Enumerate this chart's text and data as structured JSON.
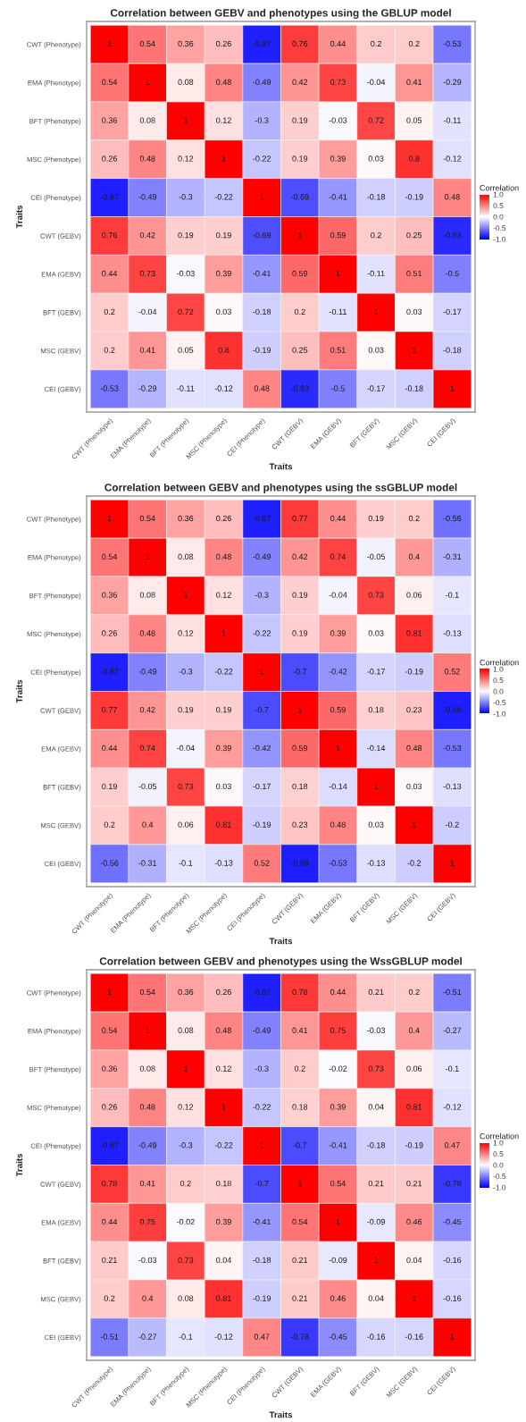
{
  "chart_data": [
    {
      "type": "heatmap",
      "title": "Correlation between GEBV and phenotypes using the GBLUP model",
      "xlabel": "Traits",
      "ylabel": "Traits",
      "clabel": "Correlation",
      "clim": [
        -1,
        1
      ],
      "cticks": [
        {
          "value": -1,
          "label": "-1.0"
        },
        {
          "value": -0.5,
          "label": "-0.5"
        },
        {
          "value": 0,
          "label": "0.0"
        },
        {
          "value": 0.5,
          "label": "0.5"
        },
        {
          "value": 1,
          "label": "1.0"
        }
      ],
      "data_labels": true,
      "categories": [
        "CWT (Phenotype)",
        "EMA (Phenotype)",
        "BFT (Phenotype)",
        "MSC (Phenotype)",
        "CEI (Phenotype)",
        "CWT (GEBV)",
        "EMA (GEBV)",
        "BFT (GEBV)",
        "MSC (GEBV)",
        "CEI (GEBV)"
      ],
      "y_categories": [
        "CWT (Phenotype)",
        "EMA (Phenotype)",
        "BFT (Phenotype)",
        "MSC (Phenotype)",
        "CEI (Phenotype)",
        "CWT (GEBV)",
        "EMA (GEBV)",
        "BFT (GEBV)",
        "MSC (GEBV)",
        "CEI (GEBV)"
      ],
      "cells": [
        [
          1,
          0.54,
          0.36,
          0.26,
          -0.87,
          0.76,
          0.44,
          0.2,
          0.2,
          -0.53
        ],
        [
          0.54,
          1,
          0.08,
          0.48,
          -0.49,
          0.42,
          0.73,
          -0.04,
          0.41,
          -0.29
        ],
        [
          0.36,
          0.08,
          1,
          0.12,
          -0.3,
          0.19,
          -0.03,
          0.72,
          0.05,
          -0.11
        ],
        [
          0.26,
          0.48,
          0.12,
          1,
          -0.22,
          0.19,
          0.39,
          0.03,
          0.8,
          -0.12
        ],
        [
          -0.87,
          -0.49,
          -0.3,
          -0.22,
          1,
          -0.69,
          -0.41,
          -0.18,
          -0.19,
          0.48
        ],
        [
          0.76,
          0.42,
          0.19,
          0.19,
          -0.69,
          1,
          0.59,
          0.2,
          0.25,
          -0.83
        ],
        [
          0.44,
          0.73,
          -0.03,
          0.39,
          -0.41,
          0.59,
          1,
          -0.11,
          0.51,
          -0.5
        ],
        [
          0.2,
          -0.04,
          0.72,
          0.03,
          -0.18,
          0.2,
          -0.11,
          1,
          0.03,
          -0.17
        ],
        [
          0.2,
          0.41,
          0.05,
          0.8,
          -0.19,
          0.25,
          0.51,
          0.03,
          1,
          -0.18
        ],
        [
          -0.53,
          -0.29,
          -0.11,
          -0.12,
          0.48,
          -0.83,
          -0.5,
          -0.17,
          -0.18,
          1
        ]
      ]
    },
    {
      "type": "heatmap",
      "title": "Correlation between GEBV and phenotypes using the ssGBLUP model",
      "xlabel": "Traits",
      "ylabel": "Traits",
      "clabel": "Correlation",
      "clim": [
        -1,
        1
      ],
      "cticks": [
        {
          "value": -1,
          "label": "-1.0"
        },
        {
          "value": -0.5,
          "label": "-0.5"
        },
        {
          "value": 0,
          "label": "0.0"
        },
        {
          "value": 0.5,
          "label": "0.5"
        },
        {
          "value": 1,
          "label": "1.0"
        }
      ],
      "data_labels": true,
      "categories": [
        "CWT (Phenotype)",
        "EMA (Phenotype)",
        "BFT (Phenotype)",
        "MSC (Phenotype)",
        "CEI (Phenotype)",
        "CWT (GEBV)",
        "EMA (GEBV)",
        "BFT (GEBV)",
        "MSC (GEBV)",
        "CEI (GEBV)"
      ],
      "y_categories": [
        "CWT (Phenotype)",
        "EMA (Phenotype)",
        "BFT (Phenotype)",
        "MSC (Phenotype)",
        "CEI (Phenotype)",
        "CWT (GEBV)",
        "EMA (GEBV)",
        "BFT (GEBV)",
        "MSC (GEBV)",
        "CEI (GEBV)"
      ],
      "cells": [
        [
          1,
          0.54,
          0.36,
          0.26,
          -0.87,
          0.77,
          0.44,
          0.19,
          0.2,
          -0.56
        ],
        [
          0.54,
          1,
          0.08,
          0.48,
          -0.49,
          0.42,
          0.74,
          -0.05,
          0.4,
          -0.31
        ],
        [
          0.36,
          0.08,
          1,
          0.12,
          -0.3,
          0.19,
          -0.04,
          0.73,
          0.06,
          -0.1
        ],
        [
          0.26,
          0.48,
          0.12,
          1,
          -0.22,
          0.19,
          0.39,
          0.03,
          0.81,
          -0.13
        ],
        [
          -0.87,
          -0.49,
          -0.3,
          -0.22,
          1,
          -0.7,
          -0.42,
          -0.17,
          -0.19,
          0.52
        ],
        [
          0.77,
          0.42,
          0.19,
          0.19,
          -0.7,
          1,
          0.59,
          0.18,
          0.23,
          -0.88
        ],
        [
          0.44,
          0.74,
          -0.04,
          0.39,
          -0.42,
          0.59,
          1,
          -0.14,
          0.48,
          -0.53
        ],
        [
          0.19,
          -0.05,
          0.73,
          0.03,
          -0.17,
          0.18,
          -0.14,
          1,
          0.03,
          -0.13
        ],
        [
          0.2,
          0.4,
          0.06,
          0.81,
          -0.19,
          0.23,
          0.48,
          0.03,
          1,
          -0.2
        ],
        [
          -0.56,
          -0.31,
          -0.1,
          -0.13,
          0.52,
          -0.88,
          -0.53,
          -0.13,
          -0.2,
          1
        ]
      ]
    },
    {
      "type": "heatmap",
      "title": "Correlation between GEBV and phenotypes using the WssGBLUP model",
      "xlabel": "Traits",
      "ylabel": "Traits",
      "clabel": "Correlation",
      "clim": [
        -1,
        1
      ],
      "cticks": [
        {
          "value": -1,
          "label": "-1.0"
        },
        {
          "value": -0.5,
          "label": "-0.5"
        },
        {
          "value": 0,
          "label": "0.0"
        },
        {
          "value": 0.5,
          "label": "0.5"
        },
        {
          "value": 1,
          "label": "1.0"
        }
      ],
      "data_labels": true,
      "categories": [
        "CWT (Phenotype)",
        "EMA (Phenotype)",
        "BFT (Phenotype)",
        "MSC (Phenotype)",
        "CEI (Phenotype)",
        "CWT (GEBV)",
        "EMA (GEBV)",
        "BFT (GEBV)",
        "MSC (GEBV)",
        "CEI (GEBV)"
      ],
      "y_categories": [
        "CWT (Phenotype)",
        "EMA (Phenotype)",
        "BFT (Phenotype)",
        "MSC (Phenotype)",
        "CEI (Phenotype)",
        "CWT (GEBV)",
        "EMA (GEBV)",
        "BFT (GEBV)",
        "MSC (GEBV)",
        "CEI (GEBV)"
      ],
      "cells": [
        [
          1,
          0.54,
          0.36,
          0.26,
          -0.87,
          0.78,
          0.44,
          0.21,
          0.2,
          -0.51
        ],
        [
          0.54,
          1,
          0.08,
          0.48,
          -0.49,
          0.41,
          0.75,
          -0.03,
          0.4,
          -0.27
        ],
        [
          0.36,
          0.08,
          1,
          0.12,
          -0.3,
          0.2,
          -0.02,
          0.73,
          0.06,
          -0.1
        ],
        [
          0.26,
          0.48,
          0.12,
          1,
          -0.22,
          0.18,
          0.39,
          0.04,
          0.81,
          -0.12
        ],
        [
          -0.87,
          -0.49,
          -0.3,
          -0.22,
          1,
          -0.7,
          -0.41,
          -0.18,
          -0.19,
          0.47
        ],
        [
          0.78,
          0.41,
          0.2,
          0.18,
          -0.7,
          1,
          0.54,
          0.21,
          0.21,
          -0.78
        ],
        [
          0.44,
          0.75,
          -0.02,
          0.39,
          -0.41,
          0.54,
          1,
          -0.09,
          0.46,
          -0.45
        ],
        [
          0.21,
          -0.03,
          0.73,
          0.04,
          -0.18,
          0.21,
          -0.09,
          1,
          0.04,
          -0.16
        ],
        [
          0.2,
          0.4,
          0.08,
          0.81,
          -0.19,
          0.21,
          0.46,
          0.04,
          1,
          -0.16
        ],
        [
          -0.51,
          -0.27,
          -0.1,
          -0.12,
          0.47,
          -0.78,
          -0.45,
          -0.16,
          -0.16,
          1
        ]
      ]
    }
  ]
}
